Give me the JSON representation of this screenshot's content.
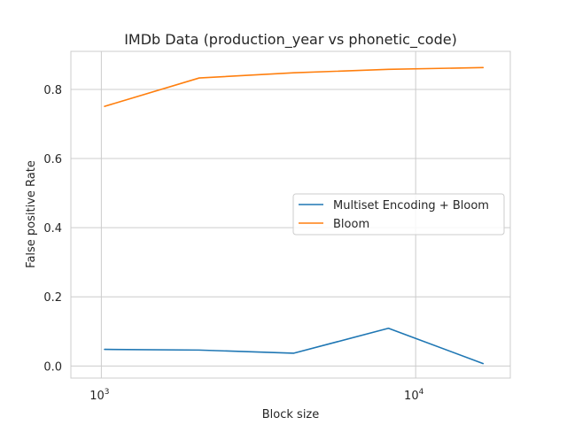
{
  "chart_data": {
    "type": "line",
    "title": "IMDb Data (production_year vs phonetic_code)",
    "xlabel": "Block size",
    "ylabel": "False positive Rate",
    "xscale": "log",
    "xlim": [
      800,
      20000
    ],
    "ylim": [
      -0.035,
      0.91
    ],
    "x": [
      1024,
      2048,
      4096,
      8192,
      16384
    ],
    "x_ticks": [
      {
        "value": 1000,
        "base": "10",
        "exp": "3"
      },
      {
        "value": 10000,
        "base": "10",
        "exp": "4"
      }
    ],
    "y_ticks": [
      {
        "value": 0.0,
        "label": "0.0"
      },
      {
        "value": 0.2,
        "label": "0.2"
      },
      {
        "value": 0.4,
        "label": "0.4"
      },
      {
        "value": 0.6,
        "label": "0.6"
      },
      {
        "value": 0.8,
        "label": "0.8"
      }
    ],
    "series": [
      {
        "name": "Multiset Encoding + Bloom",
        "color": "#1f77b4",
        "values": [
          0.048,
          0.046,
          0.037,
          0.109,
          0.007
        ]
      },
      {
        "name": "Bloom",
        "color": "#ff7f0e",
        "values": [
          0.751,
          0.833,
          0.848,
          0.858,
          0.863
        ]
      }
    ],
    "grid": true,
    "legend": "center-right"
  }
}
